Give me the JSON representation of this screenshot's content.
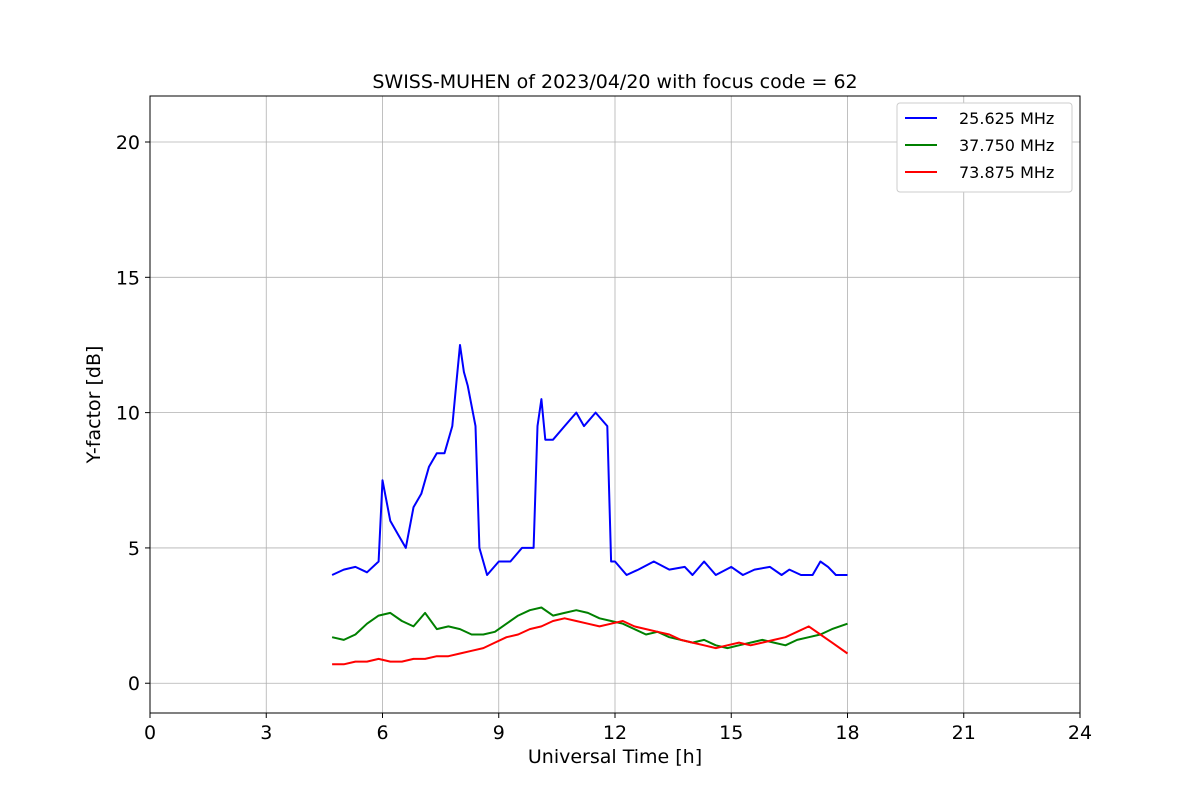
{
  "chart_data": {
    "type": "line",
    "title": "SWISS-MUHEN of 2023/04/20 with focus code = 62",
    "xlabel": "Universal Time [h]",
    "ylabel": "Y-factor [dB]",
    "xlim": [
      0,
      24
    ],
    "ylim": [
      -1.1,
      21.7
    ],
    "xticks": [
      0,
      3,
      6,
      9,
      12,
      15,
      18,
      21,
      24
    ],
    "yticks": [
      0,
      5,
      10,
      15,
      20
    ],
    "grid": true,
    "legend_position": "top-right",
    "series": [
      {
        "name": "25.625 MHz",
        "color": "#0000ff",
        "x": [
          4.7,
          5.0,
          5.3,
          5.6,
          5.9,
          6.0,
          6.2,
          6.4,
          6.6,
          6.8,
          7.0,
          7.2,
          7.4,
          7.6,
          7.8,
          7.9,
          8.0,
          8.1,
          8.2,
          8.4,
          8.5,
          8.7,
          9.0,
          9.3,
          9.6,
          9.9,
          10.0,
          10.1,
          10.2,
          10.4,
          10.7,
          11.0,
          11.2,
          11.5,
          11.8,
          11.9,
          12.0,
          12.3,
          12.6,
          13.0,
          13.4,
          13.8,
          14.0,
          14.3,
          14.6,
          15.0,
          15.3,
          15.6,
          16.0,
          16.3,
          16.5,
          16.8,
          17.1,
          17.3,
          17.5,
          17.7,
          18.0
        ],
        "y": [
          4.0,
          4.2,
          4.3,
          4.1,
          4.5,
          7.5,
          6.0,
          5.5,
          5.0,
          6.5,
          7.0,
          8.0,
          8.5,
          8.5,
          9.5,
          11.0,
          12.5,
          11.5,
          11.0,
          9.5,
          5.0,
          4.0,
          4.5,
          4.5,
          5.0,
          5.0,
          9.5,
          10.5,
          9.0,
          9.0,
          9.5,
          10.0,
          9.5,
          10.0,
          9.5,
          4.5,
          4.5,
          4.0,
          4.2,
          4.5,
          4.2,
          4.3,
          4.0,
          4.5,
          4.0,
          4.3,
          4.0,
          4.2,
          4.3,
          4.0,
          4.2,
          4.0,
          4.0,
          4.5,
          4.3,
          4.0,
          4.0
        ]
      },
      {
        "name": "37.750 MHz",
        "color": "#008000",
        "x": [
          4.7,
          5.0,
          5.3,
          5.6,
          5.9,
          6.2,
          6.5,
          6.8,
          7.1,
          7.4,
          7.7,
          8.0,
          8.3,
          8.6,
          8.9,
          9.2,
          9.5,
          9.8,
          10.1,
          10.4,
          10.7,
          11.0,
          11.3,
          11.6,
          11.9,
          12.2,
          12.5,
          12.8,
          13.1,
          13.4,
          13.7,
          14.0,
          14.3,
          14.6,
          14.9,
          15.2,
          15.5,
          15.8,
          16.1,
          16.4,
          16.7,
          17.0,
          17.3,
          17.6,
          18.0
        ],
        "y": [
          1.7,
          1.6,
          1.8,
          2.2,
          2.5,
          2.6,
          2.3,
          2.1,
          2.6,
          2.0,
          2.1,
          2.0,
          1.8,
          1.8,
          1.9,
          2.2,
          2.5,
          2.7,
          2.8,
          2.5,
          2.6,
          2.7,
          2.6,
          2.4,
          2.3,
          2.2,
          2.0,
          1.8,
          1.9,
          1.7,
          1.6,
          1.5,
          1.6,
          1.4,
          1.3,
          1.4,
          1.5,
          1.6,
          1.5,
          1.4,
          1.6,
          1.7,
          1.8,
          2.0,
          2.2
        ]
      },
      {
        "name": "73.875 MHz",
        "color": "#ff0000",
        "x": [
          4.7,
          5.0,
          5.3,
          5.6,
          5.9,
          6.2,
          6.5,
          6.8,
          7.1,
          7.4,
          7.7,
          8.0,
          8.3,
          8.6,
          8.9,
          9.2,
          9.5,
          9.8,
          10.1,
          10.4,
          10.7,
          11.0,
          11.3,
          11.6,
          11.9,
          12.2,
          12.5,
          12.8,
          13.1,
          13.4,
          13.7,
          14.0,
          14.3,
          14.6,
          14.9,
          15.2,
          15.5,
          15.8,
          16.1,
          16.4,
          16.7,
          17.0,
          17.3,
          17.6,
          18.0
        ],
        "y": [
          0.7,
          0.7,
          0.8,
          0.8,
          0.9,
          0.8,
          0.8,
          0.9,
          0.9,
          1.0,
          1.0,
          1.1,
          1.2,
          1.3,
          1.5,
          1.7,
          1.8,
          2.0,
          2.1,
          2.3,
          2.4,
          2.3,
          2.2,
          2.1,
          2.2,
          2.3,
          2.1,
          2.0,
          1.9,
          1.8,
          1.6,
          1.5,
          1.4,
          1.3,
          1.4,
          1.5,
          1.4,
          1.5,
          1.6,
          1.7,
          1.9,
          2.1,
          1.8,
          1.5,
          1.1
        ]
      }
    ]
  }
}
